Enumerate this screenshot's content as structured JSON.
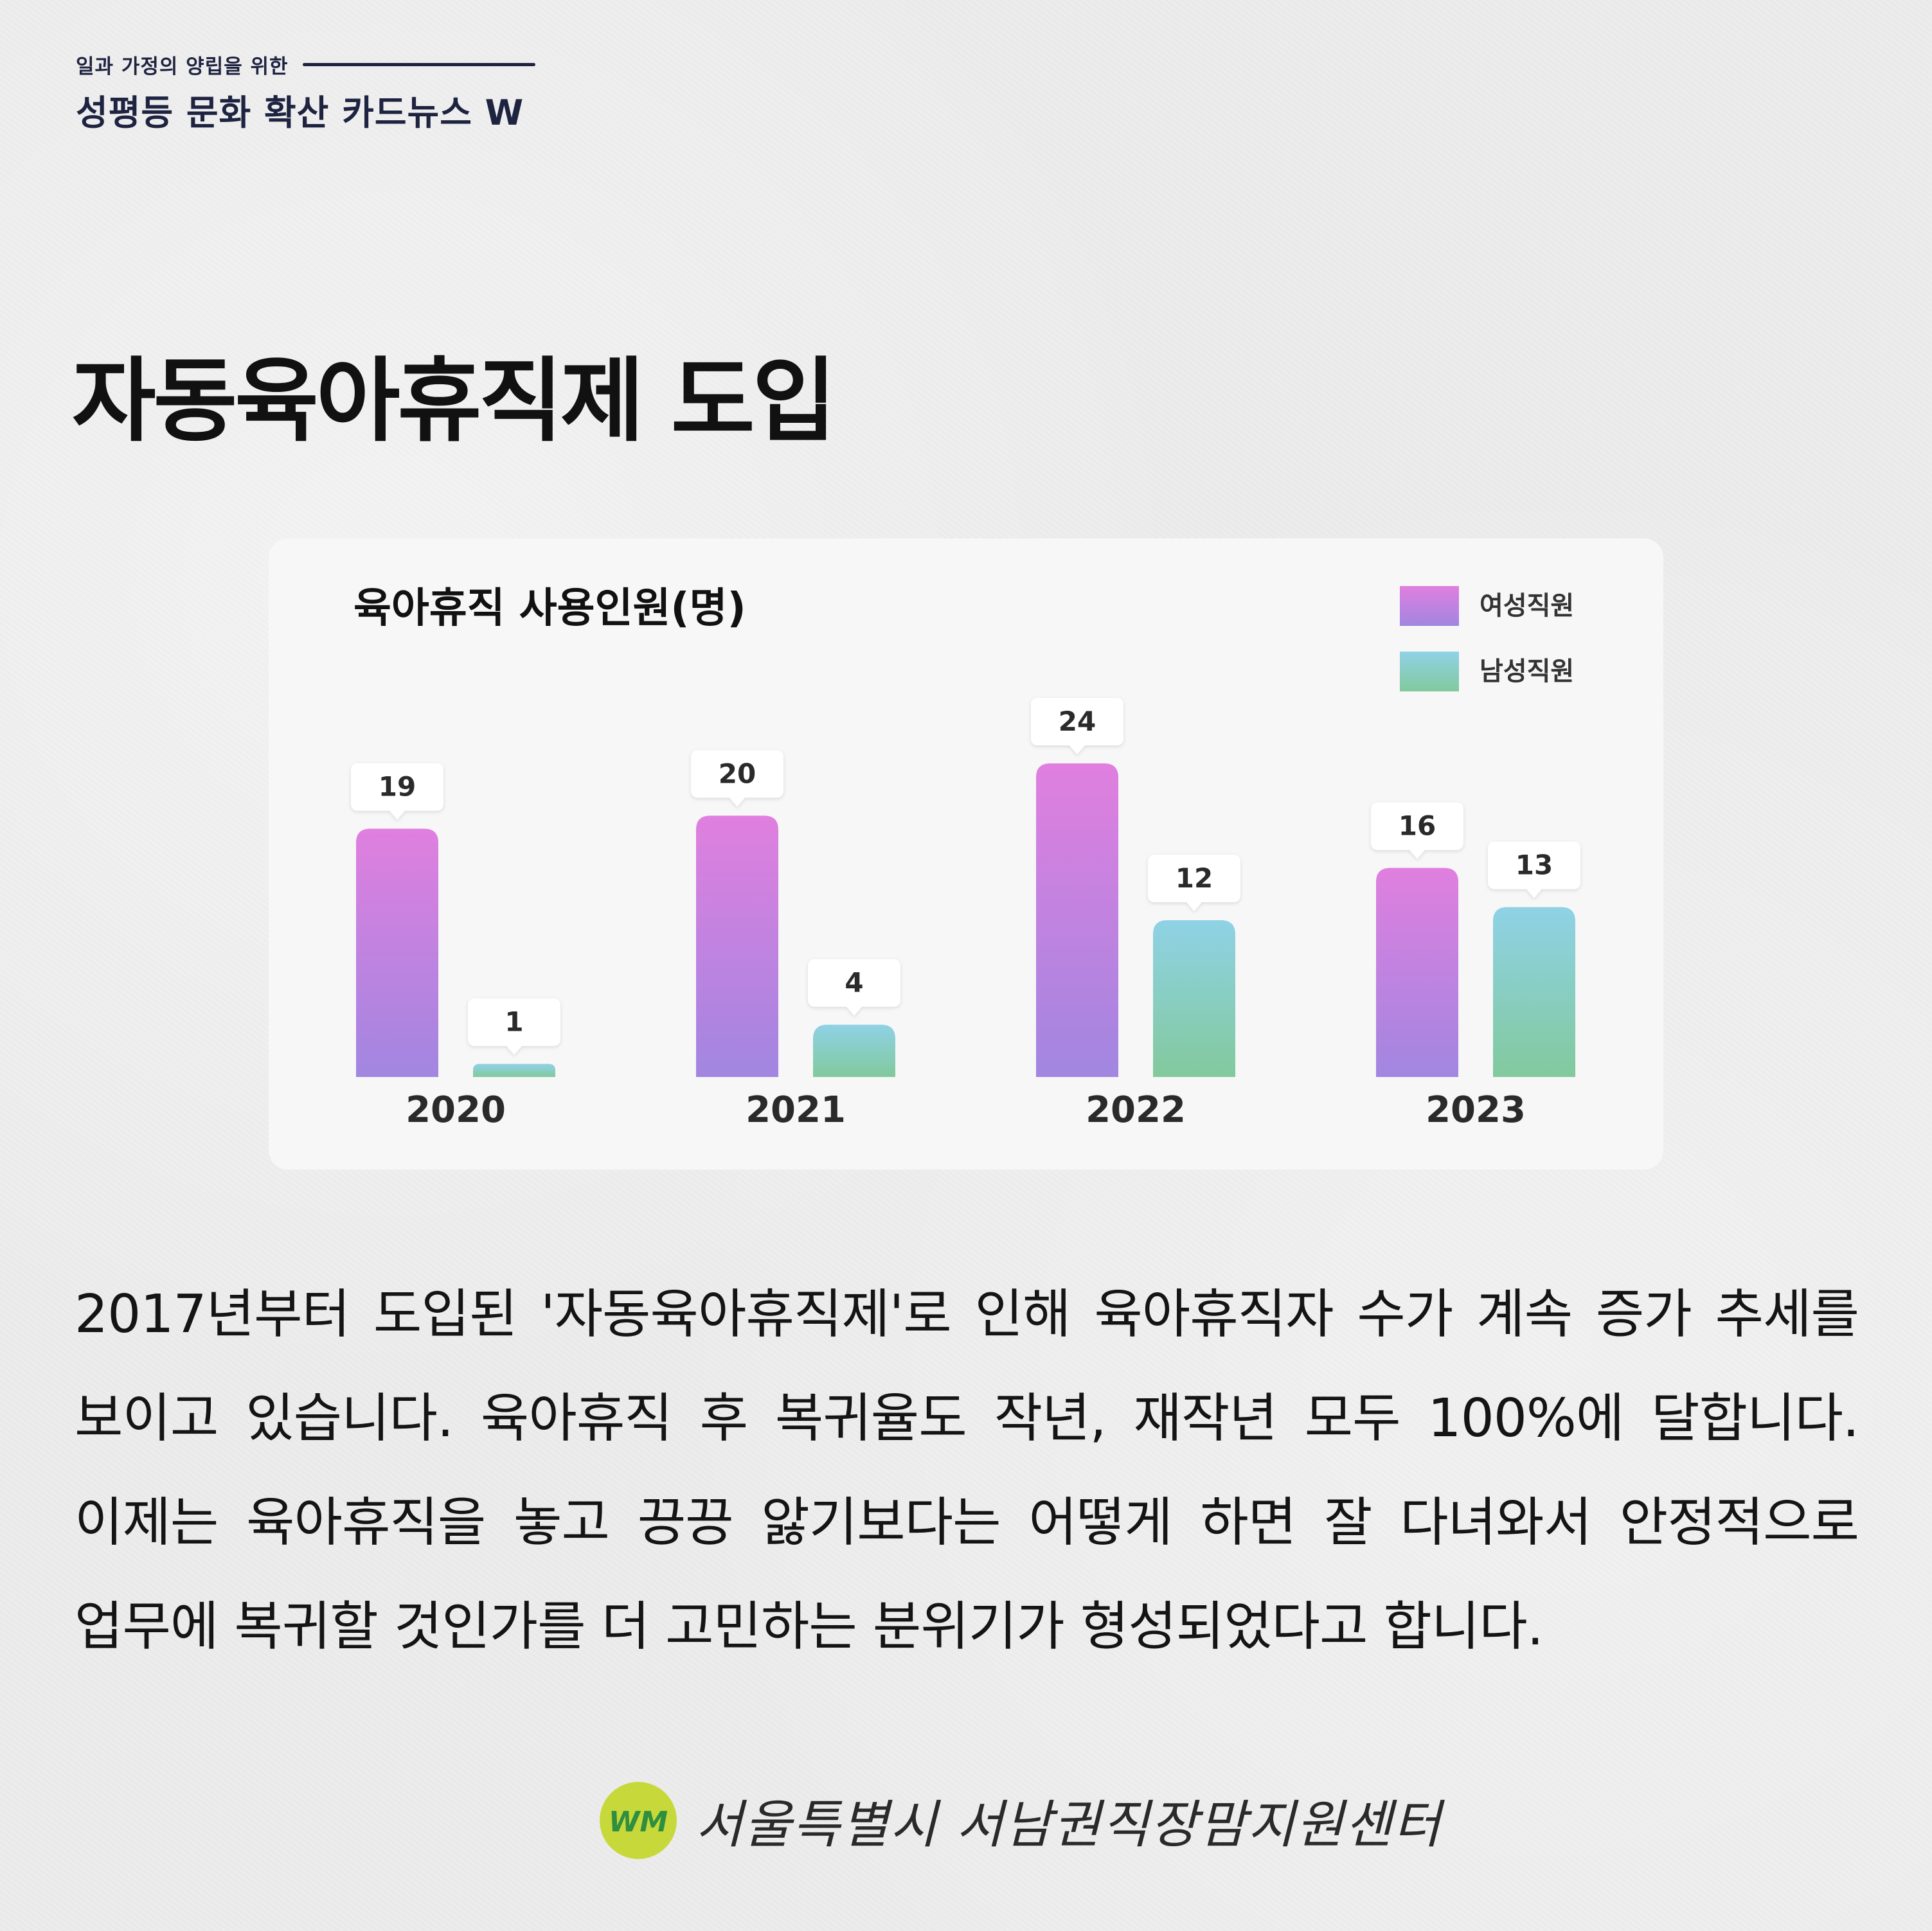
{
  "header": {
    "subtitle": "일과 가정의 양립을 위한",
    "series_title": "성평등 문화 확산 카드뉴스 W"
  },
  "page_title": "자동육아휴직제 도입",
  "chart_data": {
    "type": "bar",
    "title": "육아휴직 사용인원(명)",
    "categories": [
      "2020",
      "2021",
      "2022",
      "2023"
    ],
    "series": [
      {
        "name": "여성직원",
        "values": [
          19,
          20,
          24,
          16
        ]
      },
      {
        "name": "남성직원",
        "values": [
          1,
          4,
          12,
          13
        ]
      }
    ],
    "ylim": [
      0,
      24
    ],
    "grid": false,
    "legend_position": "top-right",
    "colors": {
      "female_top": "#e07fdf",
      "female_bottom": "#a186e0",
      "male_top": "#8fd2e6",
      "male_bottom": "#82c99d"
    }
  },
  "body_text": "2017년부터 도입된 '자동육아휴직제'로 인해 육아휴직자 수가 계속 증가 추세를 보이고 있습니다.  육아휴직 후 복귀율도 작년, 재작년 모두 100%에 달합니다. 이제는 육아휴직을 놓고 끙끙 앓기보다는 어떻게 하면 잘 다녀와서 안정적으로 업무에 복귀할 것인가를 더 고민하는 분위기가 형성되었다고 합니다.",
  "footer": {
    "logo_text": "WM",
    "organization": "서울특별시 서남권직장맘지원센터"
  }
}
